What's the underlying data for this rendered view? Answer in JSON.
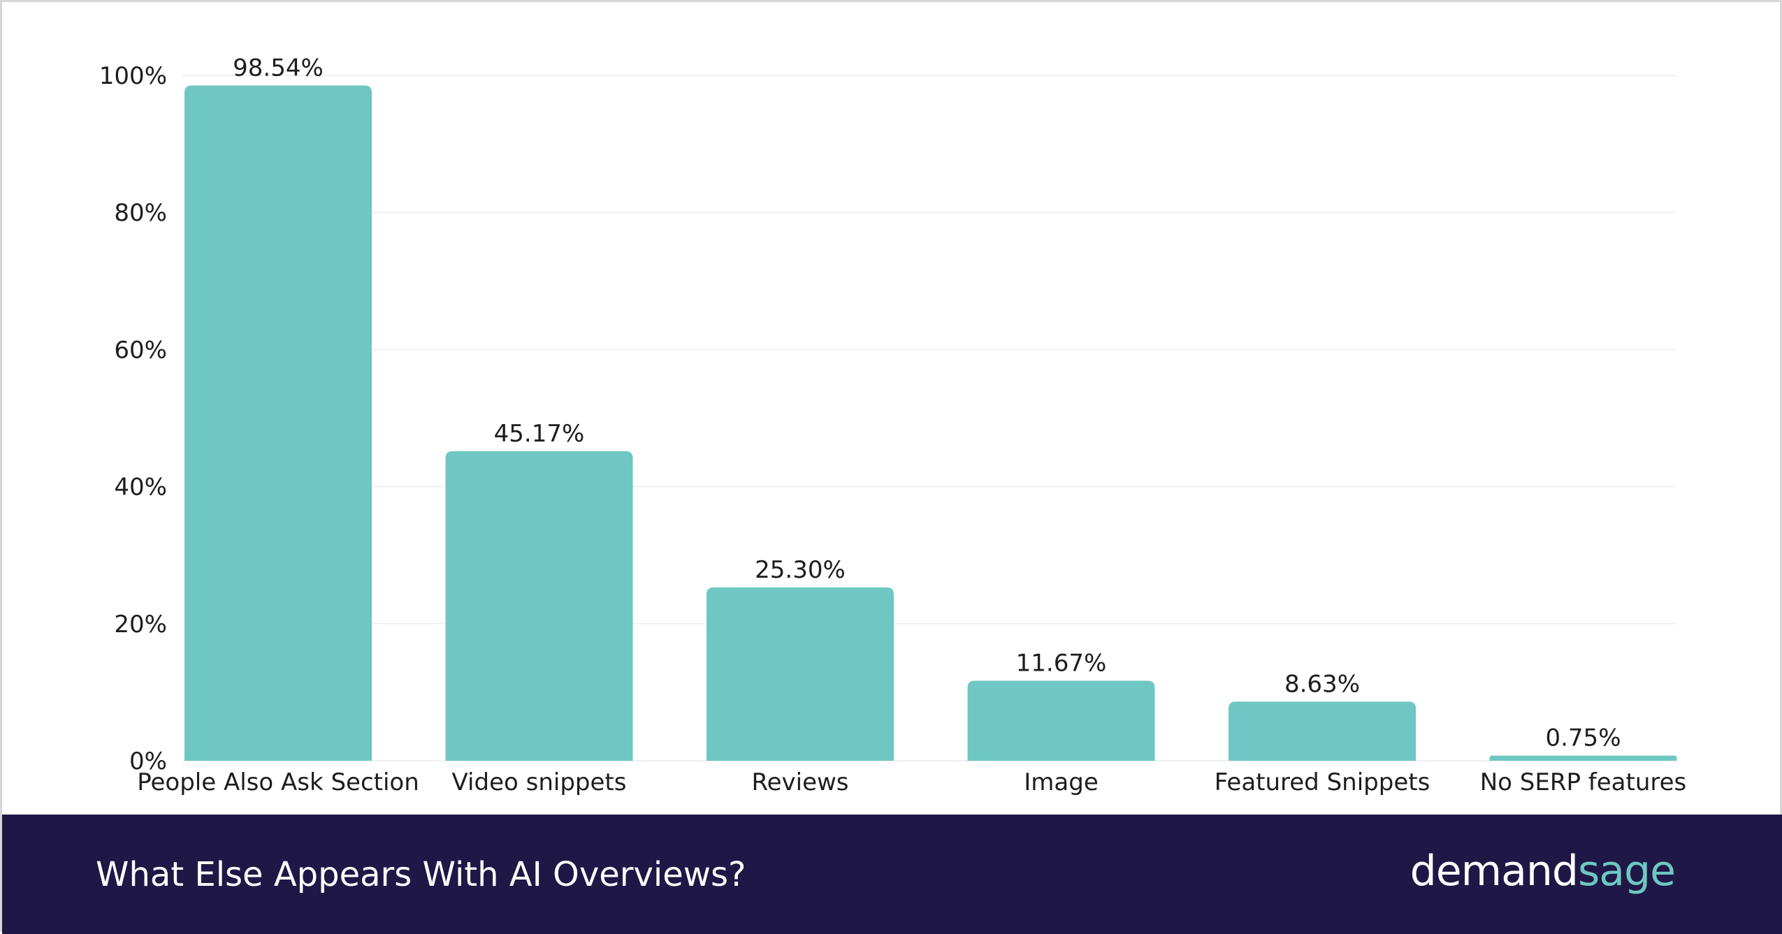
{
  "chart_data": {
    "type": "bar",
    "categories": [
      "People Also Ask Section",
      "Video snippets",
      "Reviews",
      "Image",
      "Featured Snippets",
      "No SERP features"
    ],
    "values": [
      98.54,
      45.17,
      25.3,
      11.67,
      8.63,
      0.75
    ],
    "value_labels": [
      "98.54%",
      "45.17%",
      "25.30%",
      "11.67%",
      "8.63%",
      "0.75%"
    ],
    "y_ticks": [
      {
        "value": 0,
        "label": "0%"
      },
      {
        "value": 20,
        "label": "20%"
      },
      {
        "value": 40,
        "label": "40%"
      },
      {
        "value": 60,
        "label": "60%"
      },
      {
        "value": 80,
        "label": "80%"
      },
      {
        "value": 100,
        "label": "100%"
      }
    ],
    "ylim": [
      0,
      100
    ],
    "grid": true,
    "bar_color": "#6ec7c3",
    "title": "What Else Appears With AI Overviews?"
  },
  "footer": {
    "title": "What Else Appears With AI Overviews?",
    "brand_part1": "demand",
    "brand_part2": "sage"
  },
  "colors": {
    "bar": "#6ec7c3",
    "footer_bg": "#1f1846",
    "brand_accent": "#6ec7c3",
    "grid": "#ececec"
  }
}
